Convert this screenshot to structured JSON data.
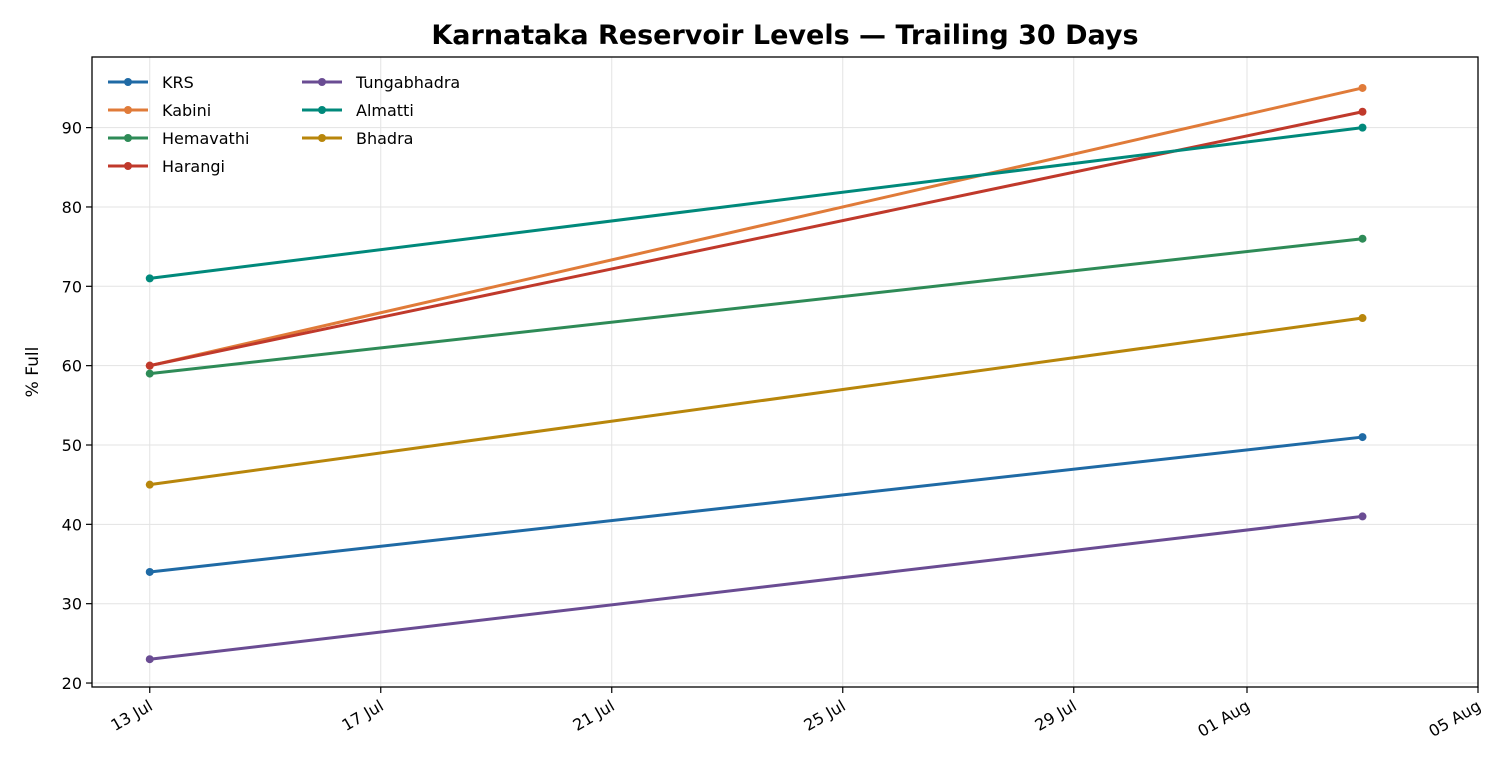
{
  "chart_data": {
    "type": "line",
    "title": "Karnataka Reservoir Levels — Trailing 30 Days",
    "xlabel": "",
    "ylabel": "% Full",
    "x": [
      "2024-07-13",
      "2024-08-03"
    ],
    "xlim": [
      "2024-07-12",
      "2024-08-05"
    ],
    "ylim": [
      19.5,
      98.9
    ],
    "yticks": [
      20,
      30,
      40,
      50,
      60,
      70,
      80,
      90
    ],
    "xticks": [
      {
        "date": "2024-07-13",
        "label": "13 Jul"
      },
      {
        "date": "2024-07-17",
        "label": "17 Jul"
      },
      {
        "date": "2024-07-21",
        "label": "21 Jul"
      },
      {
        "date": "2024-07-25",
        "label": "25 Jul"
      },
      {
        "date": "2024-07-29",
        "label": "29 Jul"
      },
      {
        "date": "2024-08-01",
        "label": "01 Aug"
      },
      {
        "date": "2024-08-05",
        "label": "05 Aug"
      }
    ],
    "grid": true,
    "legend_position": "top-left",
    "series": [
      {
        "name": "KRS",
        "color": "#1f6aa5",
        "values": [
          34,
          51
        ]
      },
      {
        "name": "Kabini",
        "color": "#e07b39",
        "values": [
          60,
          95
        ]
      },
      {
        "name": "Hemavathi",
        "color": "#2e8b57",
        "values": [
          59,
          76
        ]
      },
      {
        "name": "Harangi",
        "color": "#c0392b",
        "values": [
          60,
          92
        ]
      },
      {
        "name": "Tungabhadra",
        "color": "#6a4c93",
        "values": [
          23,
          41
        ]
      },
      {
        "name": "Almatti",
        "color": "#00897b",
        "values": [
          71,
          90
        ]
      },
      {
        "name": "Bhadra",
        "color": "#b8860b",
        "values": [
          45,
          66
        ]
      }
    ]
  }
}
